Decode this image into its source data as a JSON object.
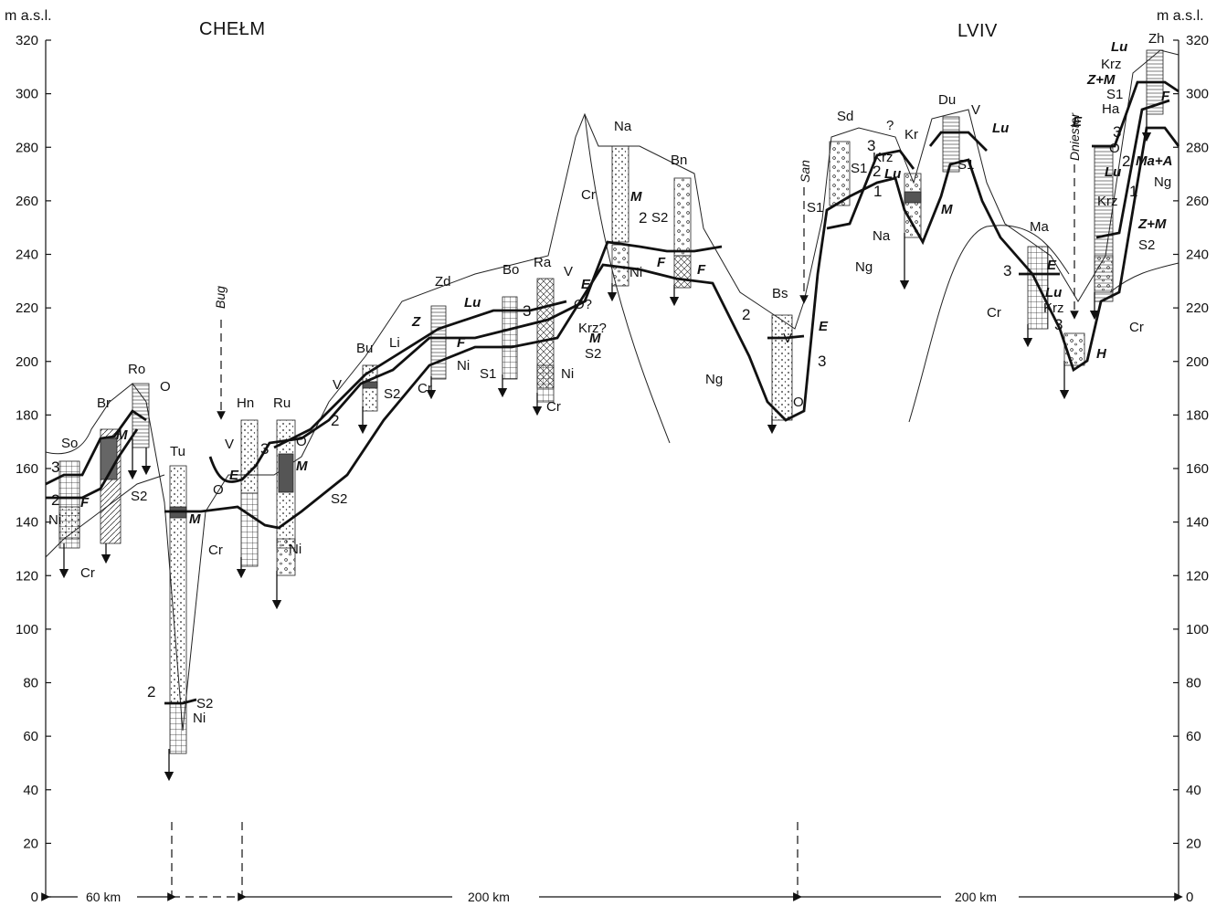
{
  "axis": {
    "unit_left": "m a.s.l.",
    "unit_right": "m a.s.l.",
    "ticks": [
      "0",
      "20",
      "40",
      "60",
      "80",
      "100",
      "120",
      "140",
      "160",
      "180",
      "200",
      "220",
      "240",
      "260",
      "280",
      "300",
      "320"
    ]
  },
  "cities": {
    "chelm": "CHEŁM",
    "lviv": "LVIV"
  },
  "rivers": {
    "bug": "Bug",
    "san": "San",
    "dniester": "Dniester"
  },
  "distances": {
    "d1": "60 km",
    "d2": "200 km",
    "d3": "200 km"
  },
  "sites": {
    "so": "So",
    "br": "Br",
    "ro": "Ro",
    "tu": "Tu",
    "hn": "Hn",
    "ru": "Ru",
    "bu": "Bu",
    "li": "Li",
    "zd": "Zd",
    "bo": "Bo",
    "ra": "Ra",
    "na": "Na",
    "bn": "Bn",
    "bs": "Bs",
    "sd": "Sd",
    "kr": "Kr",
    "du": "Du",
    "na2": "Na",
    "ma": "Ma",
    "ha": "Ha",
    "zh": "Zh"
  },
  "units": {
    "cr": "Cr",
    "ng": "Ng",
    "ni": "Ni",
    "s1": "S1",
    "s2": "S2",
    "v": "V",
    "o": "O",
    "krz": "Krz",
    "krzq": "Krz?",
    "oq": "O?",
    "h": "H",
    "q": "?",
    "m": "M",
    "f": "F",
    "e": "E",
    "z": "Z",
    "lu": "Lu",
    "zm": "Z+M",
    "maa": "Ma+A"
  },
  "levels": {
    "one": "1",
    "two": "2",
    "three": "3"
  }
}
